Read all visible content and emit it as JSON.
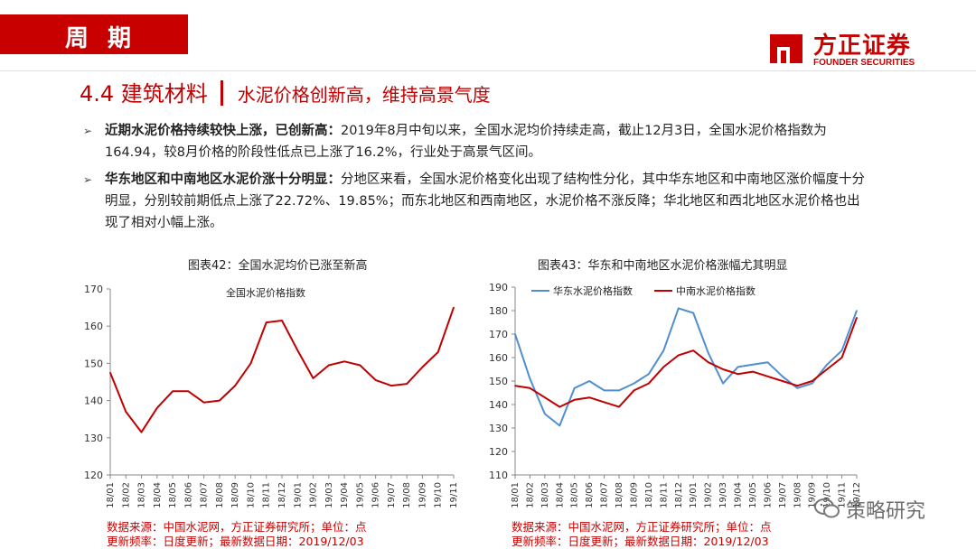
{
  "header": {
    "section_tag": "周 期"
  },
  "logo": {
    "cn": "方正证券",
    "en": "FOUNDER SECURITIES"
  },
  "section": {
    "number_title": "4.4 建筑材料",
    "subtitle": "水泥价格创新高，维持高景气度"
  },
  "bullets": [
    {
      "bold": "近期水泥价格持续较快上涨，已创新高：",
      "text": "2019年8月中旬以来，全国水泥均价持续走高，截止12月3日，全国水泥价格指数为164.94，较8月价格的阶段性低点已上涨了16.2%，行业处于高景气区间。"
    },
    {
      "bold": "华东地区和中南地区水泥价涨十分明显：",
      "text": "分地区来看，全国水泥价格变化出现了结构性分化，其中华东地区和中南地区涨价幅度十分明显，分别较前期低点上涨了22.72%、19.85%；而东北地区和西南地区，水泥价格不涨反降；华北地区和西北地区水泥价格也出现了相对小幅上涨。"
    }
  ],
  "chart_data": [
    {
      "type": "line",
      "title": "图表42：全国水泥均价已涨至新高",
      "x": [
        "18/01",
        "18/02",
        "18/03",
        "18/04",
        "18/05",
        "18/06",
        "18/07",
        "18/08",
        "18/09",
        "18/10",
        "18/11",
        "18/12",
        "19/01",
        "19/02",
        "19/03",
        "19/04",
        "19/05",
        "19/06",
        "19/07",
        "19/08",
        "19/09",
        "19/10",
        "19/11"
      ],
      "ylim": [
        120,
        170
      ],
      "yticks": [
        120,
        130,
        140,
        150,
        160,
        170
      ],
      "series": [
        {
          "name": "全国水泥价格指数",
          "color": "#c00000",
          "values": [
            147.5,
            137,
            131.5,
            138,
            142.5,
            142.5,
            139.5,
            140,
            144,
            150,
            161,
            161.5,
            153.5,
            146,
            149.5,
            150.5,
            149.5,
            145.5,
            144,
            144.5,
            149,
            153,
            165
          ]
        }
      ]
    },
    {
      "type": "line",
      "title": "图表43：华东和中南地区水泥价格涨幅尤其明显",
      "x": [
        "18/01",
        "18/02",
        "18/03",
        "18/04",
        "18/05",
        "18/06",
        "18/07",
        "18/08",
        "18/09",
        "18/10",
        "18/11",
        "18/12",
        "19/01",
        "19/02",
        "19/03",
        "19/04",
        "19/05",
        "19/06",
        "19/07",
        "19/08",
        "19/09",
        "19/10",
        "19/11",
        "19/12"
      ],
      "ylim": [
        110,
        190
      ],
      "yticks": [
        110,
        120,
        130,
        140,
        150,
        160,
        170,
        180,
        190
      ],
      "series": [
        {
          "name": "华东水泥价格指数",
          "color": "#4f8fd0",
          "values": [
            170,
            151,
            136,
            131,
            147,
            150,
            146,
            146,
            149,
            153,
            163,
            181,
            179,
            162,
            149,
            156,
            157,
            158,
            152,
            147,
            149,
            157,
            163,
            180
          ]
        },
        {
          "name": "中南水泥价格指数",
          "color": "#c00000",
          "values": [
            148,
            147,
            143,
            139,
            142,
            143,
            141,
            139,
            146,
            149,
            156,
            161,
            163,
            158,
            155,
            153,
            154,
            152,
            150,
            148,
            150,
            155,
            160,
            177
          ]
        }
      ]
    }
  ],
  "sources": [
    {
      "line1": "数据来源：中国水泥网，方正证券研究所；单位：点",
      "line2": "更新频率：日度更新；最新数据日期：2019/12/03"
    },
    {
      "line1": "数据来源：中国水泥网，方正证券研究所；单位：点",
      "line2": "更新频率：日度更新；最新数据日期：2019/12/03"
    }
  ],
  "watermark": {
    "text": "策略研究"
  }
}
